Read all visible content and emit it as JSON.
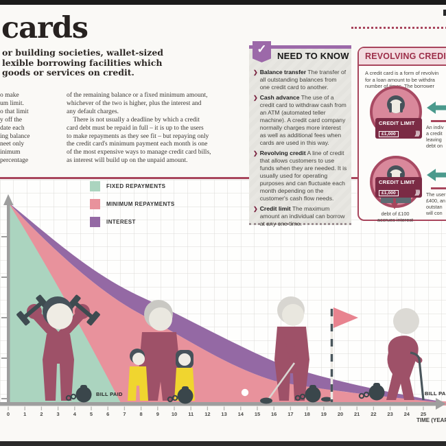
{
  "page": {
    "title": "cards",
    "intro": "or building societies, wallet-sized\nlexible borrowing facilities which\ngoods or services on credit.",
    "left_column": "o make\num limit.\no that limit\ny off the\ndate each\ning balance\nneet only\ninimum\npercentage",
    "right_column": "of the remaining balance or a fixed minimum amount,\nwhichever of the two is higher, plus the interest and\nany default charges.\n There is not usually a deadline by which a credit\ncard debt must be repaid in full – it is up to the users\nto make repayments as they see fit – but repaying only\nthe credit card's minimum payment each month is one\nof the most expensive ways to manage credit card bills,\nas interest will build up on the unpaid amount."
  },
  "need_to_know": {
    "title": "NEED TO KNOW",
    "check_glyph": "✓",
    "bullet_glyph": "❯",
    "items": [
      {
        "term": "Balance transfer",
        "desc": " The transfer of all outstanding balances from one credit card to another."
      },
      {
        "term": "Cash advance",
        "desc": " The use of a credit card to withdraw cash from an ATM (automated teller machine). A credit card company normally charges more interest as well as additional fees when cards are used in this way."
      },
      {
        "term": "Revolving credit",
        "desc": " A line of credit that allows customers to use funds when they are needed. It is usually used for operating purposes and can fluctuate each month depending on the customer's cash flow needs."
      },
      {
        "term": "Credit limit",
        "desc": " The maximum amount an individual can borrow at any one time."
      }
    ]
  },
  "revolving_credit": {
    "title": "REVOLVING CREDIT",
    "intro": "A credit card is a form of revolvin\nfor a loan amount to be withdra\nnumber of times. The borrower",
    "card_label": "CREDIT LIMIT",
    "card_amount": "£1,000",
    "contactless_glyph": ")))",
    "note_1": "An indiv\na credit\nleaving\ndebt on",
    "note_2": "The user\n£400, an\noutstan\nwill con",
    "caption": "debt of £100\naccrues interest"
  },
  "chart_data": {
    "type": "area",
    "title": "",
    "xlabel": "TIME (YEARS)",
    "ylabel": "",
    "x_ticks": [
      "0",
      "1",
      "2",
      "3",
      "4",
      "5",
      "6",
      "7",
      "8",
      "9",
      "10",
      "11",
      "12",
      "13",
      "14",
      "15",
      "16",
      "17",
      "18",
      "19",
      "20",
      "21",
      "22",
      "23",
      "24",
      "25"
    ],
    "xlim": [
      0,
      25
    ],
    "grid": true,
    "legend_position": "top-left inside plot",
    "note": "Conceptual debt-over-time diagram; y axis unlabelled (outstanding debt, normalized 0–1 estimates)",
    "x_years": [
      0,
      1,
      2,
      3,
      4,
      5,
      6,
      7,
      8,
      9,
      10,
      11,
      12,
      13,
      14,
      15,
      16,
      17,
      18,
      19,
      20,
      21,
      22,
      23,
      24,
      25
    ],
    "series": [
      {
        "name": "FIXED REPAYMENTS",
        "color": "#abd4bf",
        "values": [
          1.0,
          0.86,
          0.72,
          0.57,
          0.43,
          0.28,
          0.14,
          0.0,
          0,
          0,
          0,
          0,
          0,
          0,
          0,
          0,
          0,
          0,
          0,
          0,
          0,
          0,
          0,
          0,
          0,
          0
        ]
      },
      {
        "name": "MINIMUM REPAYMENTS",
        "color": "#e8929c",
        "values": [
          1.0,
          0.93,
          0.86,
          0.79,
          0.72,
          0.64,
          0.57,
          0.5,
          0.43,
          0.37,
          0.31,
          0.27,
          0.23,
          0.19,
          0.16,
          0.13,
          0.11,
          0.09,
          0.08,
          0.07,
          0.06,
          0.05,
          0.04,
          0.03,
          0.025,
          0.02
        ]
      },
      {
        "name": "INTEREST",
        "color": "#9469a4",
        "values": [
          1.0,
          0.95,
          0.89,
          0.83,
          0.77,
          0.7,
          0.64,
          0.57,
          0.51,
          0.45,
          0.4,
          0.36,
          0.33,
          0.29,
          0.26,
          0.23,
          0.2,
          0.17,
          0.15,
          0.13,
          0.12,
          0.1,
          0.08,
          0.06,
          0.04,
          0.01
        ]
      }
    ],
    "annotations": [
      {
        "text": "BILL PAID",
        "x_year": 5.5
      },
      {
        "text": "BILL PAID",
        "x_year": 25
      }
    ],
    "figures": [
      "young adult lifting dumbbells with ball-and-chain",
      "parent with two children and ball-and-chain",
      "golfer with golf ball, club, flag and ball-and-chain",
      "elderly person with walking cane and ball-and-chain"
    ]
  },
  "theme": {
    "maroon": "#a8455c",
    "dark_maroon": "#7b2b45",
    "figure_maroon": "#9e5168",
    "purple": "#9c69a9",
    "teal": "#4b9a8d",
    "yellow": "#f0d52f",
    "slate": "#3a464b",
    "axis_gray": "#9e9e9e"
  }
}
